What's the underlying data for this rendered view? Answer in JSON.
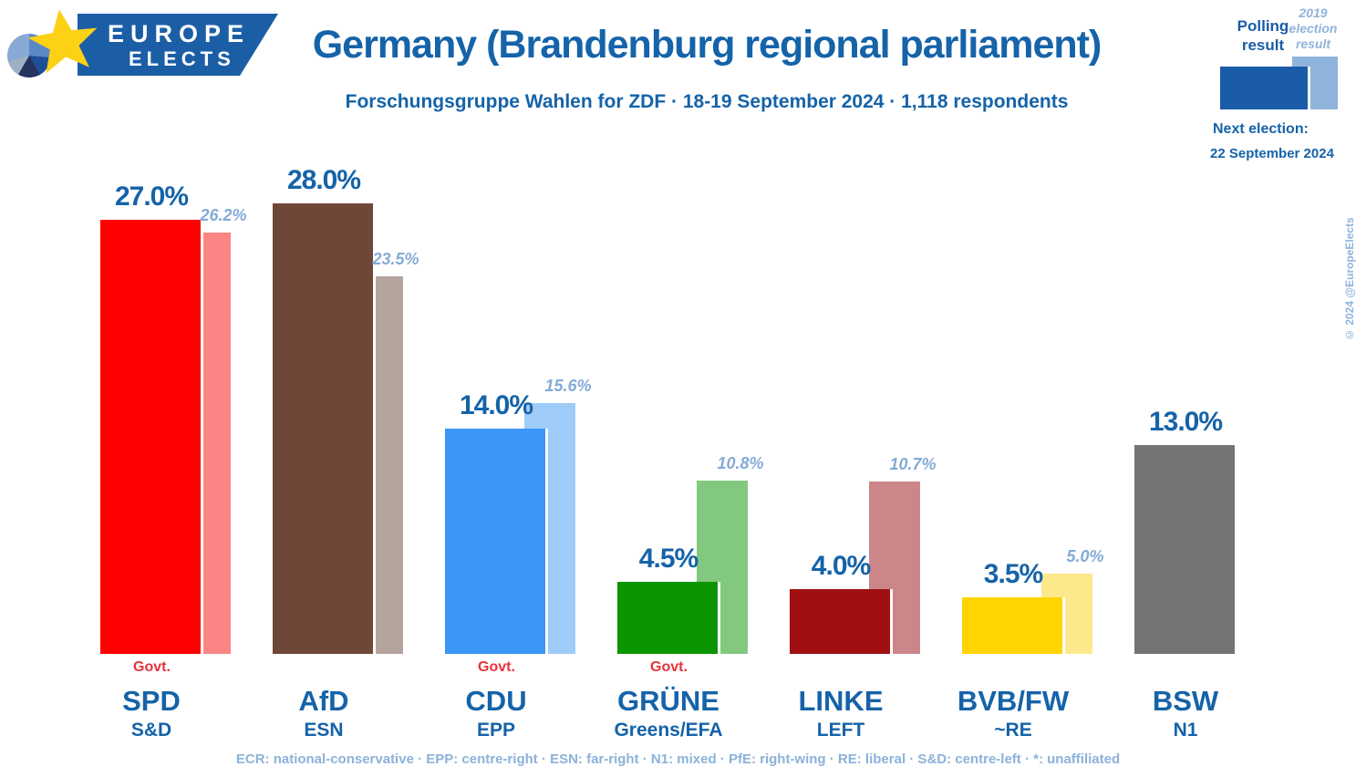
{
  "logo": {
    "line1": "EUROPE",
    "line2": "ELECTS"
  },
  "header": {
    "title": "Germany (Brandenburg regional parliament)",
    "subtitle": "Forschungsgruppe Wahlen for ZDF · 18-19 September 2024 · 1,118 respondents"
  },
  "legend": {
    "polling_label": "Polling result",
    "election_label": "2019 election result",
    "next_election_label": "Next election:",
    "next_election_date": "22 September 2024",
    "copyright": "© 2024 @EuropeElects",
    "polling_color": "#1A5CA8",
    "election_color": "#8FB4DC"
  },
  "chart_data": {
    "type": "bar",
    "title": "Germany (Brandenburg regional parliament)",
    "subtitle": "Forschungsgruppe Wahlen for ZDF · 18-19 September 2024 · 1,118 respondents",
    "categories": [
      "SPD",
      "AfD",
      "CDU",
      "GRÜNE",
      "LINKE",
      "BVB/FW",
      "BSW"
    ],
    "series": [
      {
        "name": "Polling result",
        "values": [
          27.0,
          28.0,
          14.0,
          4.5,
          4.0,
          3.5,
          13.0
        ]
      },
      {
        "name": "2019 election result",
        "values": [
          26.2,
          23.5,
          15.6,
          10.8,
          10.7,
          5.0,
          null
        ]
      }
    ],
    "ylim": [
      0,
      30
    ],
    "grid": false,
    "legend_position": "top-right",
    "xlabel": "",
    "ylabel": ""
  },
  "parties": [
    {
      "name": "SPD",
      "group": "S&D",
      "govt": "Govt.",
      "poll_value": 27.0,
      "poll_label": "27.0%",
      "election_value": 26.2,
      "election_label": "26.2%",
      "color": "#FF0000",
      "light_color": "#FB8585"
    },
    {
      "name": "AfD",
      "group": "ESN",
      "govt": null,
      "poll_value": 28.0,
      "poll_label": "28.0%",
      "election_value": 23.5,
      "election_label": "23.5%",
      "color": "#6F4739",
      "light_color": "#B5A49D"
    },
    {
      "name": "CDU",
      "group": "EPP",
      "govt": "Govt.",
      "poll_value": 14.0,
      "poll_label": "14.0%",
      "election_value": 15.6,
      "election_label": "15.6%",
      "color": "#3B96F7",
      "light_color": "#9FCBF8"
    },
    {
      "name": "GRÜNE",
      "group": "Greens/EFA",
      "govt": "Govt.",
      "poll_value": 4.5,
      "poll_label": "4.5%",
      "election_value": 10.8,
      "election_label": "10.8%",
      "color": "#0A9600",
      "light_color": "#82C87E"
    },
    {
      "name": "LINKE",
      "group": "LEFT",
      "govt": null,
      "poll_value": 4.0,
      "poll_label": "4.0%",
      "election_value": 10.7,
      "election_label": "10.7%",
      "color": "#A01010",
      "light_color": "#CC8689"
    },
    {
      "name": "BVB/FW",
      "group": "~RE",
      "govt": null,
      "poll_value": 3.5,
      "poll_label": "3.5%",
      "election_value": 5.0,
      "election_label": "5.0%",
      "color": "#FFD400",
      "light_color": "#FDE98C"
    },
    {
      "name": "BSW",
      "group": "N1",
      "govt": null,
      "poll_value": 13.0,
      "poll_label": "13.0%",
      "election_value": null,
      "election_label": null,
      "color": "#747474",
      "light_color": null
    }
  ],
  "footer": "ECR: national-conservative · EPP: centre-right · ESN: far-right · N1: mixed · PfE: right-wing · RE: liberal · S&D: centre-left · *: unaffiliated"
}
